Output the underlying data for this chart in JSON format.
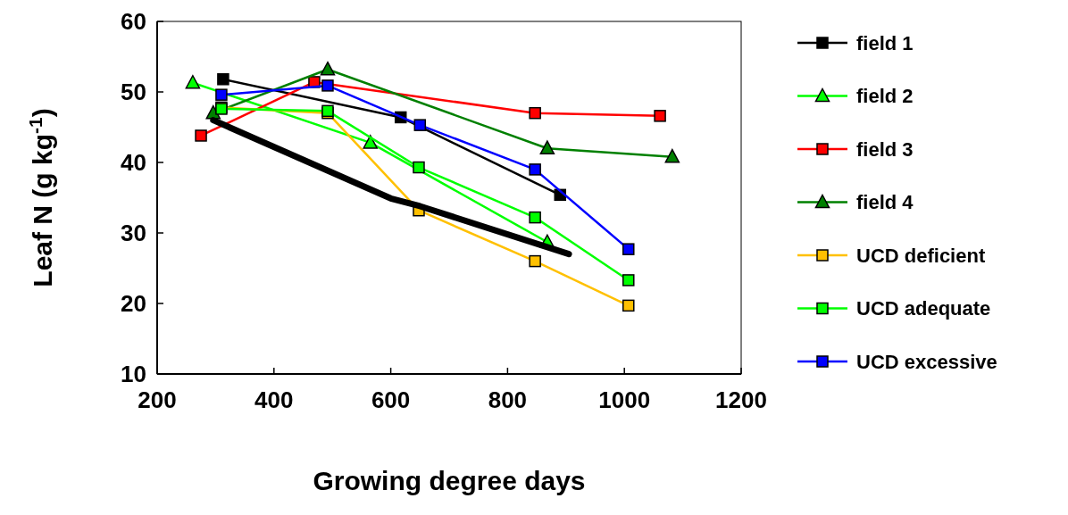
{
  "chart_data": {
    "type": "line",
    "xlabel": "Growing degree days",
    "ylabel": "Leaf N (g kg$^{-1}$)",
    "xlim": [
      200,
      1200
    ],
    "xticks": [
      200,
      400,
      600,
      800,
      1000,
      1200
    ],
    "ylim": [
      10,
      60
    ],
    "yticks": [
      10,
      20,
      30,
      40,
      50,
      60
    ],
    "grid": false,
    "legend": "right",
    "series": [
      {
        "name": "field 1",
        "color": "#000000",
        "marker": "square",
        "x": [
          313,
          617,
          890
        ],
        "values": [
          51.8,
          46.4,
          35.4
        ]
      },
      {
        "name": "field 2",
        "color": "#00ff00",
        "marker": "triangle",
        "x": [
          261,
          565,
          868
        ],
        "values": [
          51.3,
          42.8,
          28.7
        ]
      },
      {
        "name": "field 3",
        "color": "#ff0000",
        "marker": "square",
        "x": [
          275,
          469,
          847,
          1061
        ],
        "values": [
          43.8,
          51.4,
          47.0,
          46.6
        ]
      },
      {
        "name": "field 4",
        "color": "#008000",
        "marker": "triangle",
        "x": [
          296,
          492,
          868,
          1082
        ],
        "values": [
          47.0,
          53.2,
          42.0,
          40.8
        ]
      },
      {
        "name": "UCD deficient",
        "color": "#ffc000",
        "marker": "square",
        "x": [
          310,
          492,
          648,
          847,
          1007
        ],
        "values": [
          47.8,
          47.0,
          33.2,
          26.0,
          19.7
        ]
      },
      {
        "name": "UCD adequate",
        "color": "#00ff00",
        "marker": "square",
        "x": [
          310,
          492,
          648,
          847,
          1007
        ],
        "values": [
          47.6,
          47.3,
          39.3,
          32.2,
          23.3
        ]
      },
      {
        "name": "UCD excessive",
        "color": "#0000ff",
        "marker": "square",
        "x": [
          310,
          492,
          650,
          847,
          1007
        ],
        "values": [
          49.6,
          50.9,
          45.3,
          39.0,
          27.7
        ]
      },
      {
        "color": "#000000",
        "marker": "none",
        "x": [
          296,
          600,
          650,
          905
        ],
        "values": [
          46.0,
          34.9,
          33.8,
          27.0
        ]
      }
    ]
  }
}
